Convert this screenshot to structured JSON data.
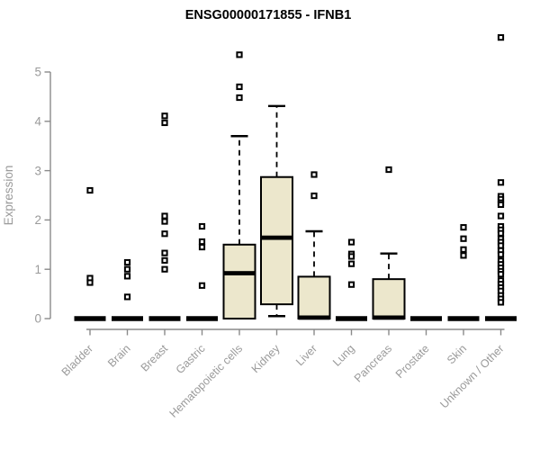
{
  "title": "ENSG00000171855 - IFNB1",
  "chart_data": {
    "type": "boxplot",
    "title": "ENSG00000171855 - IFNB1",
    "xlabel": "",
    "ylabel": "Expression",
    "ylim": [
      0,
      5
    ],
    "yticks": [
      0,
      1,
      2,
      3,
      4,
      5
    ],
    "grid": false,
    "legend": "none",
    "categories": [
      "Bladder",
      "Brain",
      "Breast",
      "Gastric",
      "Hematopoietic cells",
      "Kidney",
      "Liver",
      "Lung",
      "Pancreas",
      "Prostate",
      "Skin",
      "Unknown / Other"
    ],
    "series": [
      {
        "name": "Bladder",
        "collapsed": true,
        "median": 0,
        "outliers": [
          2.6,
          0.82,
          0.73
        ]
      },
      {
        "name": "Brain",
        "collapsed": true,
        "median": 0,
        "outliers": [
          1.14,
          1.0,
          0.86,
          0.44
        ]
      },
      {
        "name": "Breast",
        "collapsed": true,
        "median": 0,
        "outliers": [
          4.11,
          3.97,
          2.08,
          1.97,
          1.72,
          1.33,
          1.18,
          1.0
        ]
      },
      {
        "name": "Gastric",
        "collapsed": true,
        "median": 0,
        "outliers": [
          1.87,
          1.56,
          1.45,
          0.67
        ]
      },
      {
        "name": "Hematopoietic cells",
        "collapsed": false,
        "q1": 0,
        "median": 0.92,
        "q3": 1.5,
        "whisker_low": null,
        "whisker_high": 3.7,
        "outliers": [
          5.35,
          4.7,
          4.48
        ]
      },
      {
        "name": "Kidney",
        "collapsed": false,
        "q1": 0.29,
        "median": 1.64,
        "q3": 2.87,
        "whisker_low": 0.05,
        "whisker_high": 4.31,
        "outliers": []
      },
      {
        "name": "Liver",
        "collapsed": false,
        "q1": 0,
        "median": 0.02,
        "q3": 0.85,
        "whisker_low": null,
        "whisker_high": 1.77,
        "outliers": [
          2.92,
          2.49
        ]
      },
      {
        "name": "Lung",
        "collapsed": true,
        "median": 0,
        "outliers": [
          1.55,
          1.31,
          1.26,
          1.11,
          0.69
        ]
      },
      {
        "name": "Pancreas",
        "collapsed": false,
        "q1": 0,
        "median": 0.02,
        "q3": 0.8,
        "whisker_low": null,
        "whisker_high": 1.32,
        "outliers": [
          3.02
        ]
      },
      {
        "name": "Prostate",
        "collapsed": true,
        "median": 0,
        "outliers": []
      },
      {
        "name": "Skin",
        "collapsed": true,
        "median": 0,
        "outliers": [
          1.85,
          1.62,
          1.4,
          1.28
        ]
      },
      {
        "name": "Unknown / Other",
        "collapsed": true,
        "median": 0,
        "outliers": [
          5.7,
          2.76,
          2.48,
          2.42,
          2.35,
          2.31,
          2.08,
          1.87,
          1.8,
          1.73,
          1.62,
          1.55,
          1.48,
          1.38,
          1.3,
          1.17,
          1.1,
          1.03,
          0.96,
          0.9,
          0.77,
          0.7,
          0.63,
          0.56,
          0.47,
          0.4,
          0.33
        ]
      }
    ],
    "colors": {
      "box_fill": "#ECE7CC",
      "box_border": "#000000",
      "median": "#000000",
      "outlier_stroke": "#000000",
      "axis_line": "#8a8a8a",
      "axis_text": "#9a9a9a",
      "title_text": "#000000",
      "background": "#ffffff"
    }
  }
}
